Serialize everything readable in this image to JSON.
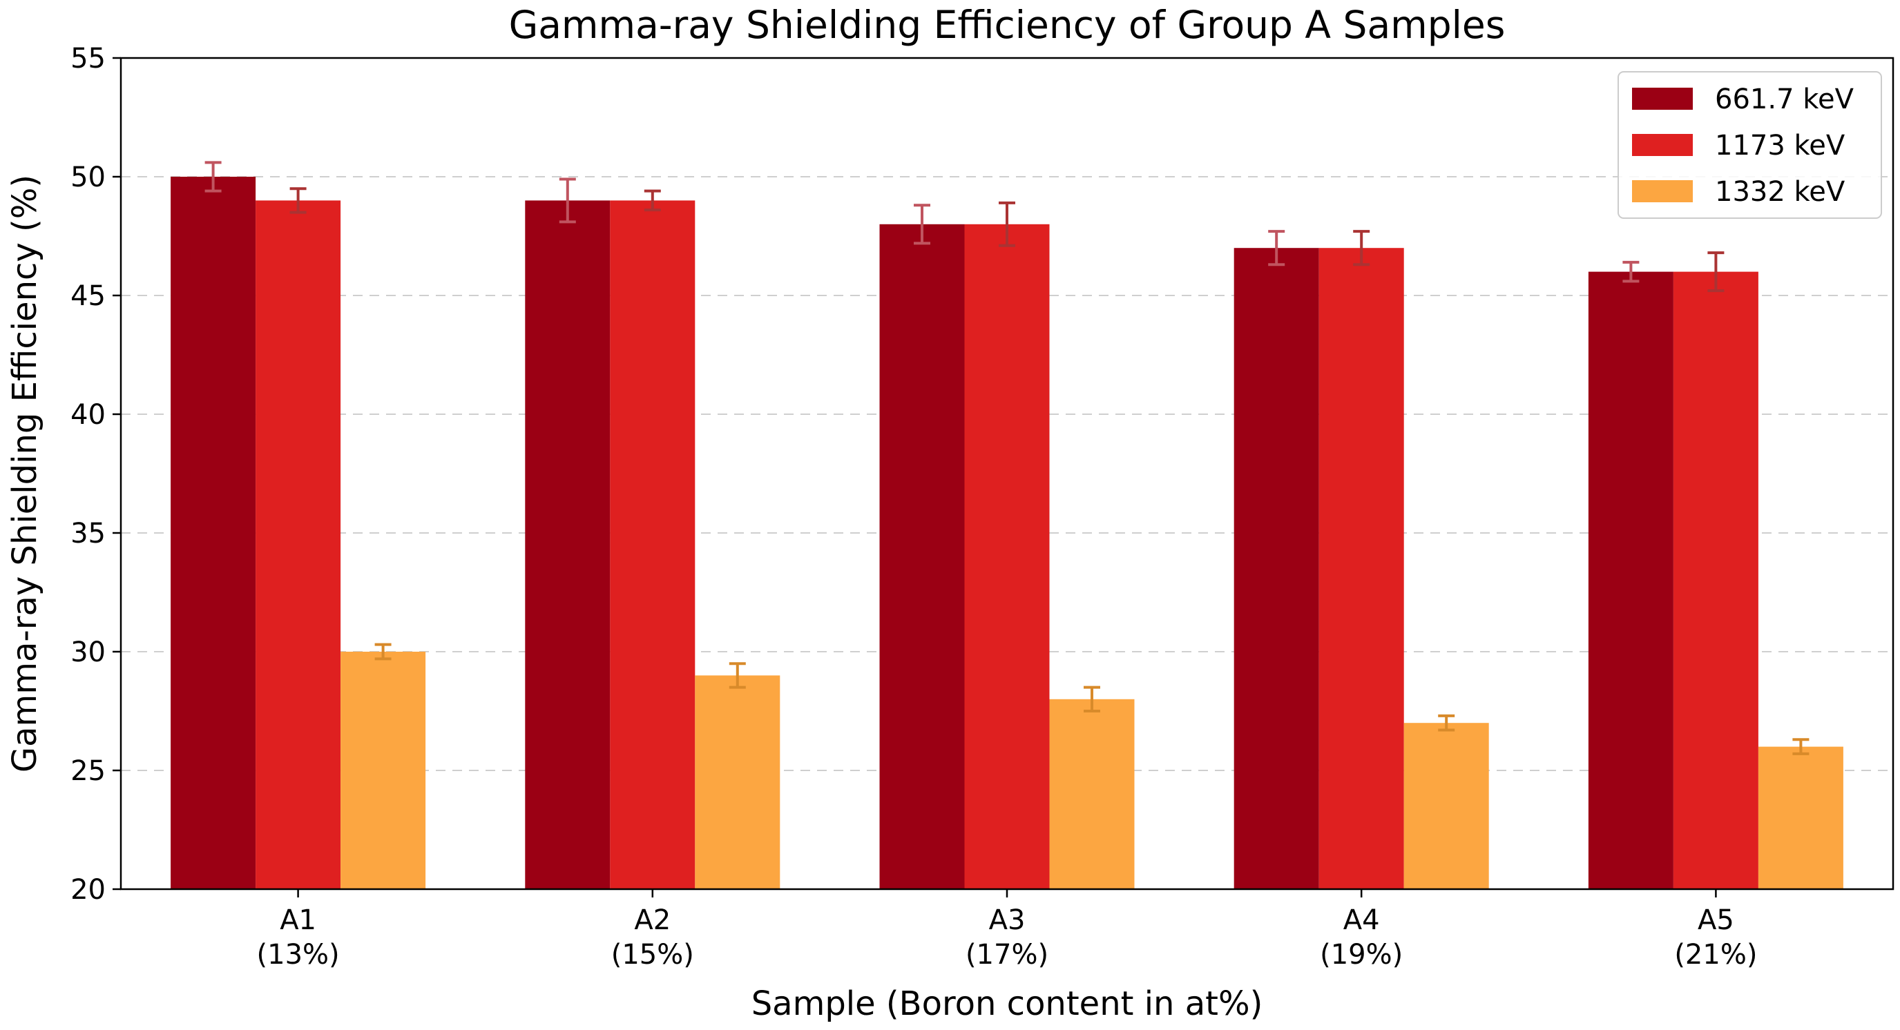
{
  "chart_data": {
    "type": "bar",
    "title": "Gamma-ray Shielding Efficiency of Group A Samples",
    "xlabel": "Sample (Boron content in at%)",
    "ylabel": "Gamma-ray Shielding Efficiency (%)",
    "ylim": [
      20,
      55
    ],
    "yticks": [
      20,
      25,
      30,
      35,
      40,
      45,
      50,
      55
    ],
    "grid": "y-dashed",
    "legend_position": "top-right",
    "categories": [
      {
        "name": "A1",
        "boron": "(13%)"
      },
      {
        "name": "A2",
        "boron": "(15%)"
      },
      {
        "name": "A3",
        "boron": "(17%)"
      },
      {
        "name": "A4",
        "boron": "(19%)"
      },
      {
        "name": "A5",
        "boron": "(21%)"
      }
    ],
    "series": [
      {
        "name": "661.7 keV",
        "color": "#9b0014",
        "error_color": "#c0545f",
        "values": [
          50,
          49,
          48,
          47,
          46
        ],
        "errors": [
          0.6,
          0.9,
          0.8,
          0.7,
          0.4
        ]
      },
      {
        "name": "1173 keV",
        "color": "#df2020",
        "error_color": "#a33",
        "values": [
          49,
          49,
          48,
          47,
          46
        ],
        "errors": [
          0.5,
          0.4,
          0.9,
          0.7,
          0.8
        ]
      },
      {
        "name": "1332 keV",
        "color": "#fca641",
        "error_color": "#d88a2a",
        "values": [
          30,
          29,
          28,
          27,
          26
        ],
        "errors": [
          0.3,
          0.5,
          0.5,
          0.3,
          0.3
        ]
      }
    ]
  }
}
